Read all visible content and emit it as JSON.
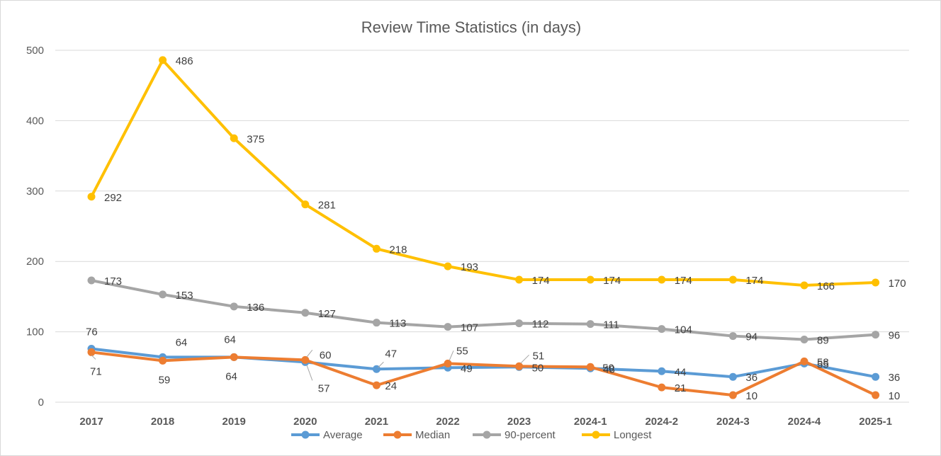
{
  "chart_data": {
    "type": "line",
    "title": "Review Time Statistics (in days)",
    "xlabel": "",
    "ylabel": "",
    "categories": [
      "2017",
      "2018",
      "2019",
      "2020",
      "2021",
      "2022",
      "2023",
      "2024-1",
      "2024-2",
      "2024-3",
      "2024-4",
      "2025-1"
    ],
    "ylim": [
      0,
      500
    ],
    "yticks": [
      0,
      100,
      200,
      300,
      400,
      500
    ],
    "grid": true,
    "legend": "bottom",
    "series": [
      {
        "name": "Average",
        "color": "#5b9bd5",
        "values": [
          76,
          64,
          64,
          57,
          47,
          49,
          50,
          48,
          44,
          36,
          55,
          36
        ]
      },
      {
        "name": "Median",
        "color": "#ed7d31",
        "values": [
          71,
          59,
          64,
          60,
          24,
          55,
          51,
          50,
          21,
          10,
          58,
          10
        ]
      },
      {
        "name": "90-percent",
        "color": "#a5a5a5",
        "values": [
          173,
          153,
          136,
          127,
          113,
          107,
          112,
          111,
          104,
          94,
          89,
          96
        ]
      },
      {
        "name": "Longest",
        "color": "#ffc000",
        "values": [
          292,
          486,
          375,
          281,
          218,
          193,
          174,
          174,
          174,
          174,
          166,
          170
        ]
      }
    ]
  }
}
